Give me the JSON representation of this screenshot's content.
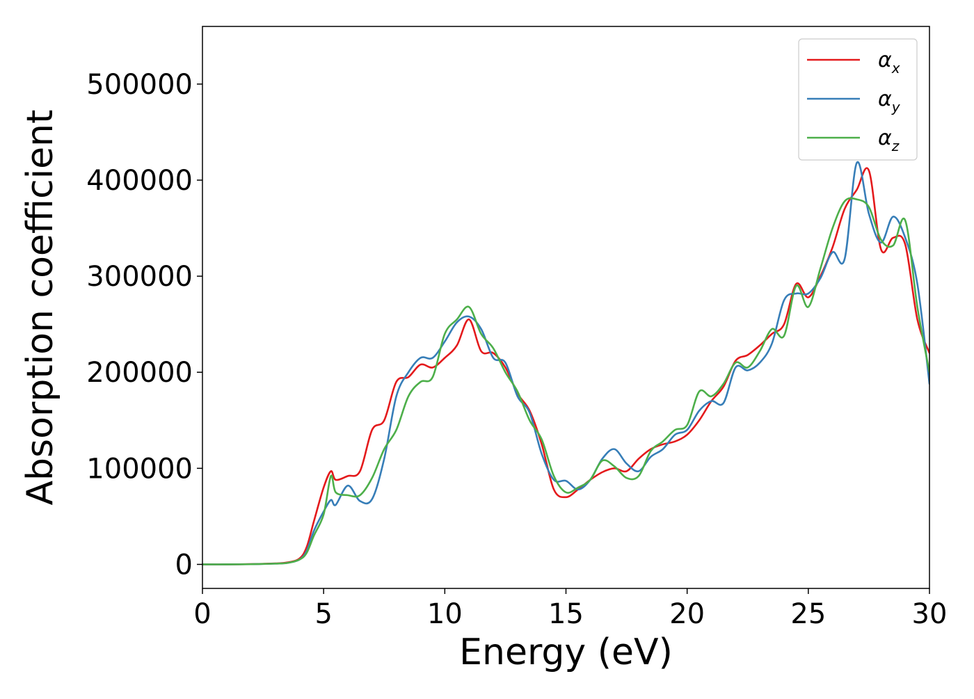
{
  "chart_data": {
    "type": "line",
    "xlabel": "Energy (eV)",
    "ylabel": "Absorption coefficient",
    "xlim": [
      0,
      30
    ],
    "ylim": [
      -25000,
      560000
    ],
    "xticks": [
      0,
      5,
      10,
      15,
      20,
      25,
      30
    ],
    "yticks": [
      0,
      100000,
      200000,
      300000,
      400000,
      500000
    ],
    "grid": false,
    "legend_position": "top-right",
    "x": [
      0,
      1,
      2,
      3,
      3.5,
      4,
      4.3,
      4.6,
      5,
      5.3,
      5.5,
      6,
      6.5,
      7,
      7.5,
      8,
      8.5,
      9,
      9.5,
      10,
      10.5,
      11,
      11.5,
      12,
      12.5,
      13,
      13.5,
      14,
      14.5,
      15,
      15.5,
      16,
      16.5,
      17,
      17.5,
      18,
      18.5,
      19,
      19.5,
      20,
      20.5,
      21,
      21.5,
      22,
      22.5,
      23,
      23.5,
      24,
      24.5,
      25,
      25.5,
      26,
      26.5,
      27,
      27.5,
      28,
      28.5,
      29,
      29.5,
      30
    ],
    "series": [
      {
        "name": "α_x",
        "symbol": "α",
        "subscript": "x",
        "color": "#e41a1c",
        "values": [
          0,
          0,
          300,
          1000,
          2000,
          6000,
          18000,
          45000,
          80000,
          97000,
          88000,
          92000,
          97000,
          140000,
          150000,
          190000,
          195000,
          208000,
          205000,
          215000,
          228000,
          255000,
          222000,
          220000,
          205000,
          178000,
          160000,
          125000,
          78000,
          70000,
          78000,
          88000,
          96000,
          100000,
          97000,
          110000,
          120000,
          125000,
          128000,
          135000,
          150000,
          170000,
          185000,
          212000,
          218000,
          228000,
          240000,
          250000,
          292000,
          278000,
          300000,
          330000,
          370000,
          390000,
          410000,
          328000,
          340000,
          333000,
          255000,
          220000
        ]
      },
      {
        "name": "α_y",
        "symbol": "α",
        "subscript": "y",
        "color": "#377eb8",
        "values": [
          0,
          0,
          200,
          800,
          1500,
          5000,
          14000,
          35000,
          55000,
          67000,
          62000,
          82000,
          66000,
          68000,
          110000,
          175000,
          200000,
          215000,
          215000,
          232000,
          252000,
          258000,
          245000,
          215000,
          210000,
          175000,
          158000,
          115000,
          88000,
          87000,
          78000,
          88000,
          110000,
          120000,
          105000,
          97000,
          112000,
          120000,
          135000,
          140000,
          160000,
          170000,
          168000,
          205000,
          202000,
          210000,
          230000,
          275000,
          282000,
          282000,
          298000,
          325000,
          318000,
          418000,
          365000,
          335000,
          362000,
          340000,
          292000,
          188000
        ]
      },
      {
        "name": "α_z",
        "symbol": "α",
        "subscript": "z",
        "color": "#4daf4a",
        "values": [
          0,
          0,
          200,
          800,
          1500,
          5000,
          12000,
          30000,
          52000,
          92000,
          75000,
          72000,
          72000,
          90000,
          120000,
          140000,
          175000,
          190000,
          195000,
          240000,
          255000,
          268000,
          240000,
          225000,
          200000,
          180000,
          150000,
          130000,
          92000,
          75000,
          80000,
          88000,
          108000,
          102000,
          90000,
          92000,
          118000,
          128000,
          140000,
          145000,
          180000,
          175000,
          188000,
          210000,
          205000,
          222000,
          245000,
          238000,
          290000,
          268000,
          308000,
          350000,
          378000,
          380000,
          372000,
          338000,
          332000,
          358000,
          268000,
          200000
        ]
      }
    ]
  }
}
